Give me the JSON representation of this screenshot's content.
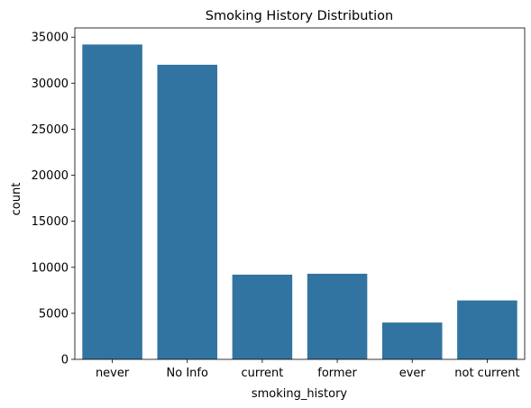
{
  "chart_data": {
    "type": "bar",
    "title": "Smoking History Distribution",
    "xlabel": "smoking_history",
    "ylabel": "count",
    "categories": [
      "never",
      "No Info",
      "current",
      "former",
      "ever",
      "not current"
    ],
    "values": [
      34200,
      32000,
      9200,
      9300,
      4000,
      6400
    ],
    "ylim": [
      0,
      36000
    ],
    "yticks": [
      0,
      5000,
      10000,
      15000,
      20000,
      25000,
      30000,
      35000
    ],
    "ytick_labels": [
      "0",
      "5000",
      "10000",
      "15000",
      "20000",
      "25000",
      "30000",
      "35000"
    ],
    "bar_color": "#3274a1",
    "grid": false,
    "legend": "none"
  }
}
